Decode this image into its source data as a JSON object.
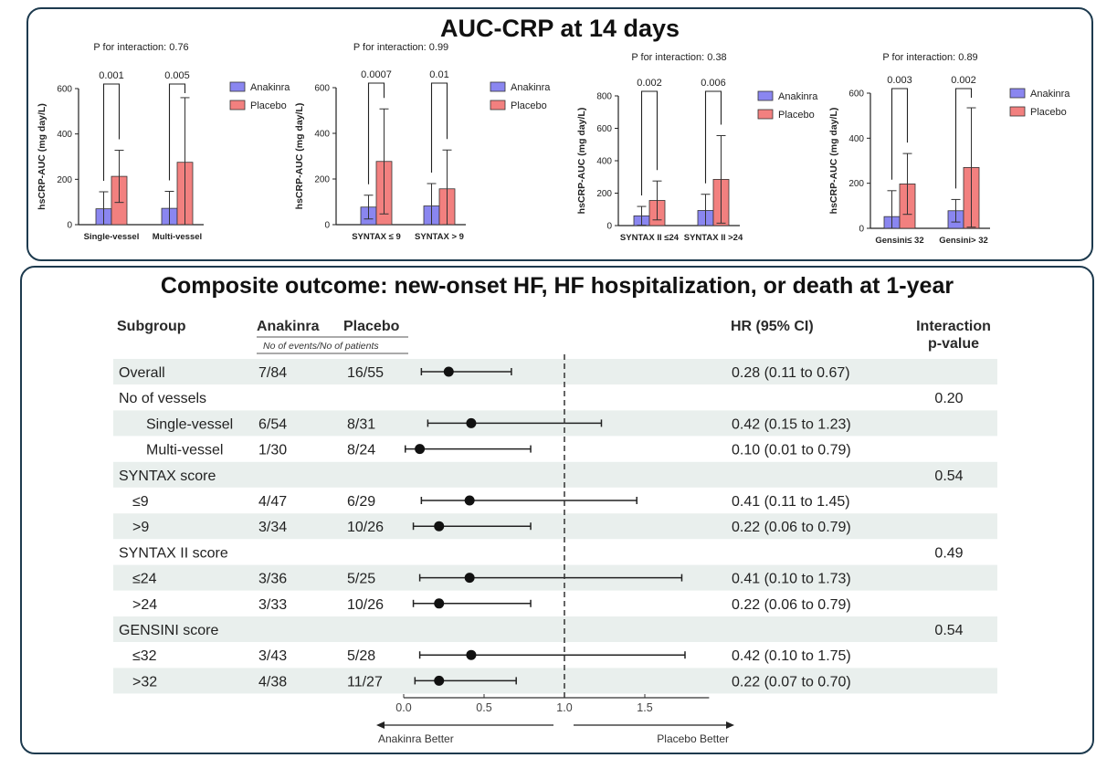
{
  "top_panel": {
    "title": "AUC-CRP at 14 days"
  },
  "bottom_panel": {
    "title": "Composite outcome: new-onset HF, HF hospitalization, or death at 1-year"
  },
  "colors": {
    "anakinra": "#8a86f0",
    "placebo": "#f2807f",
    "row_shade": "#e9efed",
    "border": "#1d3a4e"
  },
  "chart_data": [
    {
      "type": "bar",
      "title": "P for interaction: 0.76",
      "ylabel": "hsCRP-AUC (mg day/L)",
      "ylim": [
        0,
        600
      ],
      "yticks": [
        "0",
        "200",
        "400",
        "600"
      ],
      "categories": [
        "Single-vessel",
        "Multi-vessel"
      ],
      "series": [
        {
          "name": "Anakinra",
          "values": [
            70,
            72
          ],
          "error": [
            75,
            75
          ]
        },
        {
          "name": "Placebo",
          "values": [
            213,
            275
          ],
          "error": [
            115,
            285
          ]
        }
      ],
      "p_values": [
        "0.001",
        "0.005"
      ]
    },
    {
      "type": "bar",
      "title": "P for interaction: 0.99",
      "ylabel": "hsCRP-AUC (mg day/L)",
      "ylim": [
        0,
        600
      ],
      "yticks": [
        "0",
        "200",
        "400",
        "600"
      ],
      "categories": [
        "SYNTAX ≤ 9",
        "SYNTAX > 9"
      ],
      "series": [
        {
          "name": "Anakinra",
          "values": [
            77,
            82
          ],
          "error": [
            52,
            98
          ]
        },
        {
          "name": "Placebo",
          "values": [
            277,
            157
          ],
          "error": [
            230,
            170
          ]
        }
      ],
      "p_values": [
        "0.0007",
        "0.01"
      ]
    },
    {
      "type": "bar",
      "title": "P for interaction: 0.38",
      "ylabel": "hsCRP-AUC (mg day/L)",
      "ylim": [
        0,
        800
      ],
      "yticks": [
        "0",
        "200",
        "400",
        "600",
        "800"
      ],
      "categories": [
        "SYNTAX II ≤24",
        "SYNTAX II >24"
      ],
      "series": [
        {
          "name": "Anakinra",
          "values": [
            60,
            93
          ],
          "error": [
            58,
            100
          ]
        },
        {
          "name": "Placebo",
          "values": [
            155,
            285
          ],
          "error": [
            120,
            270
          ]
        }
      ],
      "p_values": [
        "0.002",
        "0.006"
      ]
    },
    {
      "type": "bar",
      "title": "P for interaction: 0.89",
      "ylabel": "hsCRP-AUC (mg day/L)",
      "ylim": [
        0,
        600
      ],
      "yticks": [
        "0",
        "200",
        "400",
        "600"
      ],
      "categories": [
        "Gensini≤ 32",
        "Gensini> 32"
      ],
      "series": [
        {
          "name": "Anakinra",
          "values": [
            52,
            78
          ],
          "error": [
            115,
            50
          ]
        },
        {
          "name": "Placebo",
          "values": [
            197,
            270
          ],
          "error": [
            135,
            265
          ]
        }
      ],
      "p_values": [
        "0.003",
        "0.002"
      ]
    },
    {
      "type": "scatter",
      "title": "",
      "xlim": [
        0,
        1.9
      ],
      "xticks": [
        "0.0",
        "0.5",
        "1.0",
        "1.5"
      ],
      "reference_line": 1.0,
      "headers": {
        "subgroup": "Subgroup",
        "anakinra": "Anakinra",
        "placebo": "Placebo",
        "events_note": "No of events/No of patients",
        "hr": "HR (95% CI)",
        "interaction_line1": "Interaction",
        "interaction_line2": "p-value"
      },
      "rows": [
        {
          "label": "Overall",
          "indent": 0,
          "shaded": true,
          "anakinra": "7/84",
          "placebo": "16/55",
          "hr": 0.28,
          "lo": 0.11,
          "hi": 0.67,
          "hr_text": "0.28 (0.11 to 0.67)",
          "p": ""
        },
        {
          "label": "No of vessels",
          "indent": 0,
          "shaded": false,
          "anakinra": "",
          "placebo": "",
          "hr_text": "",
          "p": "0.20"
        },
        {
          "label": "Single-vessel",
          "indent": 1,
          "shaded": true,
          "anakinra": "6/54",
          "placebo": "8/31",
          "hr": 0.42,
          "lo": 0.15,
          "hi": 1.23,
          "hr_text": "0.42 (0.15 to 1.23)",
          "p": ""
        },
        {
          "label": "Multi-vessel",
          "indent": 1,
          "shaded": false,
          "anakinra": "1/30",
          "placebo": "8/24",
          "hr": 0.1,
          "lo": 0.01,
          "hi": 0.79,
          "hr_text": "0.10 (0.01 to 0.79)",
          "p": ""
        },
        {
          "label": "SYNTAX  score",
          "indent": 0,
          "shaded": true,
          "anakinra": "",
          "placebo": "",
          "hr_text": "",
          "p": "0.54"
        },
        {
          "label": "≤9",
          "indent": 0.5,
          "shaded": false,
          "anakinra": "4/47",
          "placebo": "6/29",
          "hr": 0.41,
          "lo": 0.11,
          "hi": 1.45,
          "hr_text": "0.41 (0.11 to 1.45)",
          "p": ""
        },
        {
          "label": ">9",
          "indent": 0.5,
          "shaded": true,
          "anakinra": "3/34",
          "placebo": "10/26",
          "hr": 0.22,
          "lo": 0.06,
          "hi": 0.79,
          "hr_text": "0.22 (0.06 to 0.79)",
          "p": ""
        },
        {
          "label": "SYNTAX II score",
          "indent": 0,
          "shaded": false,
          "anakinra": "",
          "placebo": "",
          "hr_text": "",
          "p": "0.49"
        },
        {
          "label": "≤24",
          "indent": 0.5,
          "shaded": true,
          "anakinra": "3/36",
          "placebo": "5/25",
          "hr": 0.41,
          "lo": 0.1,
          "hi": 1.73,
          "hr_text": "0.41 (0.10 to 1.73)",
          "p": ""
        },
        {
          "label": ">24",
          "indent": 0.5,
          "shaded": false,
          "anakinra": "3/33",
          "placebo": "10/26",
          "hr": 0.22,
          "lo": 0.06,
          "hi": 0.79,
          "hr_text": "0.22 (0.06 to 0.79)",
          "p": ""
        },
        {
          "label": "GENSINI score",
          "indent": 0,
          "shaded": true,
          "anakinra": "",
          "placebo": "",
          "hr_text": "",
          "p": "0.54"
        },
        {
          "label": "≤32",
          "indent": 0.5,
          "shaded": false,
          "anakinra": "3/43",
          "placebo": "5/28",
          "hr": 0.42,
          "lo": 0.1,
          "hi": 1.75,
          "hr_text": "0.42 (0.10 to 1.75)",
          "p": ""
        },
        {
          "label": ">32",
          "indent": 0.5,
          "shaded": true,
          "anakinra": "4/38",
          "placebo": "11/27",
          "hr": 0.22,
          "lo": 0.07,
          "hi": 0.7,
          "hr_text": "0.22 (0.07 to 0.70)",
          "p": ""
        }
      ],
      "arrows": {
        "left": "Anakinra Better",
        "right": "Placebo Better"
      }
    }
  ]
}
